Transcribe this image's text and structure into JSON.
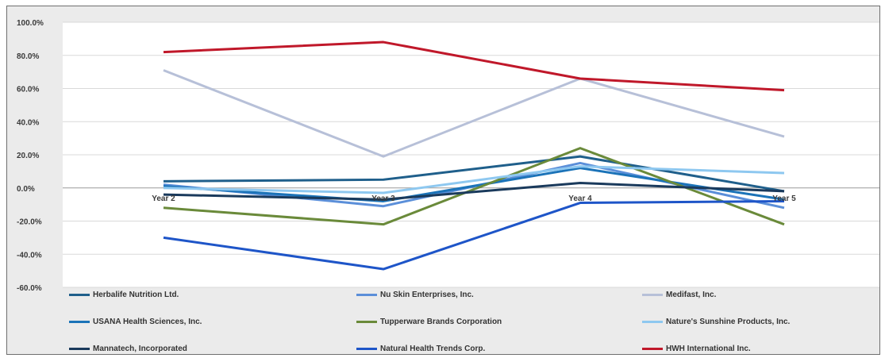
{
  "chart_data": {
    "type": "line",
    "categories": [
      "Year 2",
      "Year 3",
      "Year 4",
      "Year 5"
    ],
    "ylim": [
      -60,
      100
    ],
    "y_ticks": [
      "100.0%",
      "80.0%",
      "60.0%",
      "40.0%",
      "20.0%",
      "0.0%",
      "-20.0%",
      "-40.0%",
      "-60.0%"
    ],
    "grid": true,
    "legend_position": "bottom",
    "series": [
      {
        "name": "Herbalife Nutrition Ltd.",
        "color": "#1f5f8b",
        "values": [
          4,
          5,
          19,
          -2
        ]
      },
      {
        "name": "Nu Skin Enterprises, Inc.",
        "color": "#5b8fd9",
        "values": [
          2,
          -11,
          15,
          -12
        ]
      },
      {
        "name": "Medifast, Inc.",
        "color": "#b7c0d8",
        "values": [
          71,
          19,
          66,
          31
        ]
      },
      {
        "name": "USANA Health Sciences, Inc.",
        "color": "#1b73b8",
        "values": [
          1,
          -8,
          12,
          -7
        ]
      },
      {
        "name": "Tupperware Brands Corporation",
        "color": "#6a8a3a",
        "values": [
          -12,
          -22,
          24,
          -22
        ]
      },
      {
        "name": "Nature's Sunshine Products, Inc.",
        "color": "#8ec8f0",
        "values": [
          0,
          -3,
          13,
          9
        ]
      },
      {
        "name": "Mannatech, Incorporated",
        "color": "#1a3a5c",
        "values": [
          -4,
          -7,
          3,
          -2
        ]
      },
      {
        "name": "Natural Health Trends Corp.",
        "color": "#1e55c8",
        "values": [
          -30,
          -49,
          -9,
          -8
        ]
      },
      {
        "name": "HWH International Inc.",
        "color": "#c0182a",
        "values": [
          82,
          88,
          66,
          59
        ]
      }
    ]
  }
}
